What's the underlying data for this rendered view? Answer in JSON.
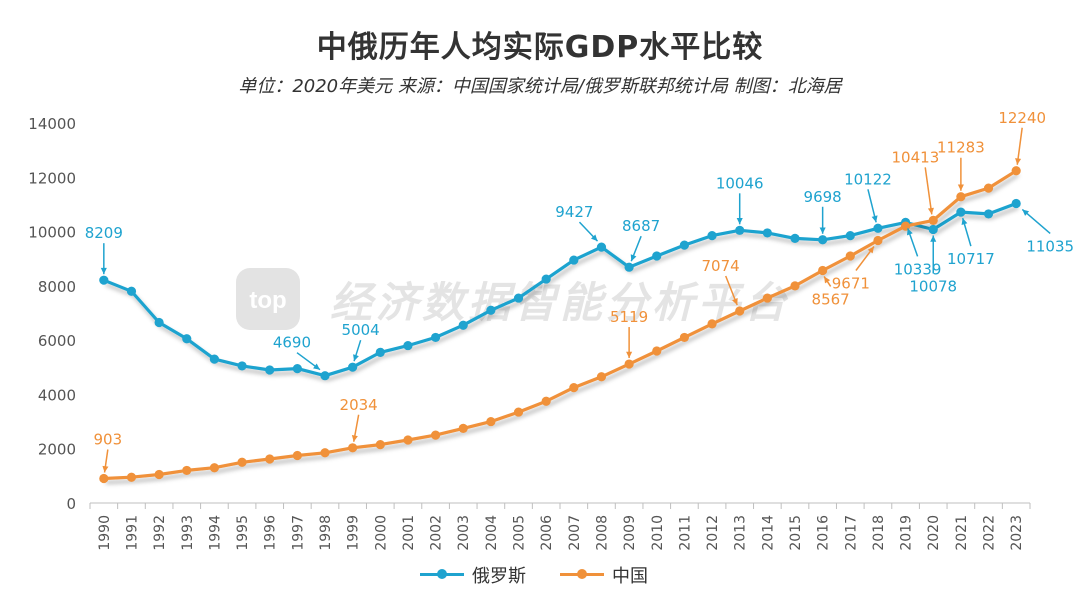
{
  "chart_data": {
    "type": "line",
    "title": "中俄历年人均实际GDP水平比较",
    "subtitle": "单位：2020年美元  来源：中国国家统计局/俄罗斯联邦统计局  制图：北海居",
    "watermark": "经济数据智能分析平台",
    "watermark_logo": "top",
    "x": [
      "1990",
      "1991",
      "1992",
      "1993",
      "1994",
      "1995",
      "1996",
      "1997",
      "1998",
      "1999",
      "2000",
      "2001",
      "2002",
      "2003",
      "2004",
      "2005",
      "2006",
      "2007",
      "2008",
      "2009",
      "2010",
      "2011",
      "2012",
      "2013",
      "2014",
      "2015",
      "2016",
      "2017",
      "2018",
      "2019",
      "2020",
      "2021",
      "2022",
      "2023"
    ],
    "ylim": [
      0,
      14000
    ],
    "yticks": [
      "0",
      "2000",
      "4000",
      "6000",
      "8000",
      "10000",
      "12000",
      "14000"
    ],
    "grid": false,
    "legend_position": "bottom",
    "series": [
      {
        "name": "俄罗斯",
        "color": "#1fa3cf",
        "values": [
          8209,
          7800,
          6650,
          6050,
          5300,
          5050,
          4900,
          4950,
          4690,
          5004,
          5550,
          5800,
          6100,
          6550,
          7100,
          7550,
          8250,
          8950,
          9427,
          8687,
          9100,
          9500,
          9850,
          10046,
          9950,
          9750,
          9698,
          9850,
          10122,
          10339,
          10078,
          10717,
          10650,
          11035
        ]
      },
      {
        "name": "中国",
        "color": "#f0913a",
        "values": [
          903,
          950,
          1050,
          1200,
          1300,
          1500,
          1620,
          1750,
          1850,
          2034,
          2150,
          2320,
          2500,
          2750,
          3000,
          3350,
          3750,
          4250,
          4650,
          5119,
          5600,
          6100,
          6600,
          7074,
          7550,
          8000,
          8567,
          9100,
          9671,
          10200,
          10413,
          11283,
          11600,
          12240
        ]
      }
    ],
    "annotations": [
      {
        "series": 0,
        "x": "1990",
        "text": "8209"
      },
      {
        "series": 0,
        "x": "1998",
        "text": "4690"
      },
      {
        "series": 0,
        "x": "1999",
        "text": "5004"
      },
      {
        "series": 0,
        "x": "2008",
        "text": "9427"
      },
      {
        "series": 0,
        "x": "2009",
        "text": "8687"
      },
      {
        "series": 0,
        "x": "2013",
        "text": "10046"
      },
      {
        "series": 0,
        "x": "2016",
        "text": "9698"
      },
      {
        "series": 0,
        "x": "2018",
        "text": "10122"
      },
      {
        "series": 0,
        "x": "2019",
        "text": "10339"
      },
      {
        "series": 0,
        "x": "2020",
        "text": "10078"
      },
      {
        "series": 0,
        "x": "2021",
        "text": "10717"
      },
      {
        "series": 0,
        "x": "2023",
        "text": "11035"
      },
      {
        "series": 1,
        "x": "1990",
        "text": "903"
      },
      {
        "series": 1,
        "x": "1999",
        "text": "2034"
      },
      {
        "series": 1,
        "x": "2009",
        "text": "5119"
      },
      {
        "series": 1,
        "x": "2013",
        "text": "7074"
      },
      {
        "series": 1,
        "x": "2016",
        "text": "8567"
      },
      {
        "series": 1,
        "x": "2018",
        "text": "9671"
      },
      {
        "series": 1,
        "x": "2020",
        "text": "10413"
      },
      {
        "series": 1,
        "x": "2021",
        "text": "11283"
      },
      {
        "series": 1,
        "x": "2023",
        "text": "12240"
      }
    ]
  }
}
